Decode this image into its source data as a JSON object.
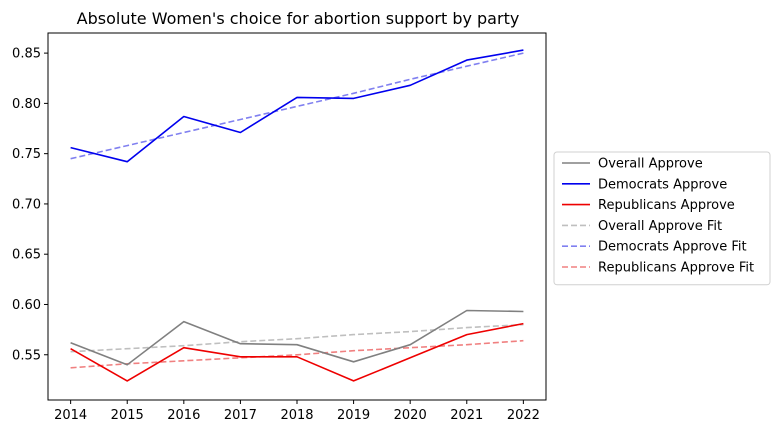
{
  "chart_data": {
    "type": "line",
    "title": "Absolute Women's choice for abortion support by party",
    "xlabel": "",
    "ylabel": "",
    "x": [
      2014,
      2015,
      2016,
      2017,
      2018,
      2019,
      2020,
      2021,
      2022
    ],
    "xlim": [
      2013.6,
      2022.4
    ],
    "ylim": [
      0.505,
      0.87
    ],
    "yticks": [
      0.55,
      0.6,
      0.65,
      0.7,
      0.75,
      0.8,
      0.85
    ],
    "ytick_labels": [
      "0.55",
      "0.60",
      "0.65",
      "0.70",
      "0.75",
      "0.80",
      "0.85"
    ],
    "xtick_labels": [
      "2014",
      "2015",
      "2016",
      "2017",
      "2018",
      "2019",
      "2020",
      "2021",
      "2022"
    ],
    "grid": false,
    "legend_position": "center-right-outside",
    "series": [
      {
        "name": "Overall Approve",
        "style": "solid",
        "color": "#808080",
        "values": [
          0.562,
          0.54,
          0.583,
          0.561,
          0.56,
          0.543,
          0.56,
          0.594,
          0.593
        ]
      },
      {
        "name": "Democrats Approve",
        "style": "solid",
        "color": "#0000ee",
        "values": [
          0.756,
          0.742,
          0.787,
          0.771,
          0.806,
          0.805,
          0.818,
          0.843,
          0.853
        ]
      },
      {
        "name": "Republicans Approve",
        "style": "solid",
        "color": "#ee0000",
        "values": [
          0.556,
          0.524,
          0.557,
          0.548,
          0.548,
          0.524,
          0.547,
          0.57,
          0.581
        ]
      },
      {
        "name": "Overall Approve Fit",
        "style": "dashed",
        "color": "#bfbfbf",
        "values": [
          0.553,
          0.556,
          0.559,
          0.563,
          0.566,
          0.57,
          0.573,
          0.577,
          0.58
        ]
      },
      {
        "name": "Democrats Approve Fit",
        "style": "dashed",
        "color": "#8080f0",
        "values": [
          0.745,
          0.758,
          0.771,
          0.784,
          0.797,
          0.81,
          0.824,
          0.837,
          0.85
        ]
      },
      {
        "name": "Republicans Approve Fit",
        "style": "dashed",
        "color": "#f08080",
        "values": [
          0.537,
          0.541,
          0.544,
          0.547,
          0.55,
          0.554,
          0.557,
          0.56,
          0.564
        ]
      }
    ]
  }
}
